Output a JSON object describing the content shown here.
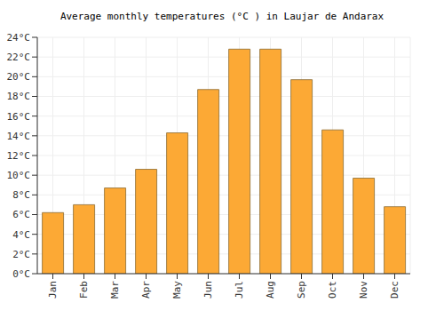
{
  "chart_data": {
    "type": "bar",
    "title": "Average monthly temperatures (°C ) in Laujar de Andarax",
    "categories": [
      "Jan",
      "Feb",
      "Mar",
      "Apr",
      "May",
      "Jun",
      "Jul",
      "Aug",
      "Sep",
      "Oct",
      "Nov",
      "Dec"
    ],
    "values": [
      6.2,
      7.0,
      8.7,
      10.6,
      14.3,
      18.7,
      22.8,
      22.8,
      19.7,
      14.6,
      9.7,
      6.8
    ],
    "color": "#fca935",
    "ylim": [
      0,
      24
    ],
    "yticks": [
      {
        "value": 0,
        "label": "0°C"
      },
      {
        "value": 2,
        "label": "2°C"
      },
      {
        "value": 4,
        "label": "4°C"
      },
      {
        "value": 6,
        "label": "6°C"
      },
      {
        "value": 8,
        "label": "8°C"
      },
      {
        "value": 10,
        "label": "10°C"
      },
      {
        "value": 12,
        "label": "12°C"
      },
      {
        "value": 14,
        "label": "14°C"
      },
      {
        "value": 16,
        "label": "16°C"
      },
      {
        "value": 18,
        "label": "18°C"
      },
      {
        "value": 20,
        "label": "20°C"
      },
      {
        "value": 22,
        "label": "22°C"
      },
      {
        "value": 24,
        "label": "24°C"
      }
    ],
    "grid": true
  }
}
